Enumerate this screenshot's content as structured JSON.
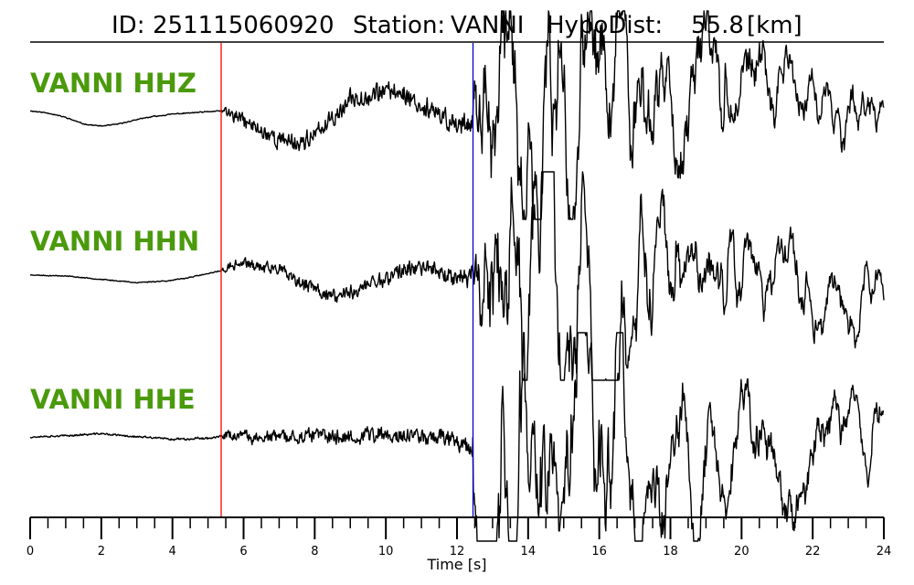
{
  "title": {
    "id_label": "ID:",
    "id_value": "251115060920",
    "station_label": "Station:",
    "station_value": "VANNI",
    "dist_label": "HypoDist:",
    "dist_value": "55.8",
    "dist_unit": "[km]"
  },
  "colors": {
    "label": "#4a9a0c",
    "trace": "#000000",
    "p_pick": "#ff0000",
    "s_pick": "#0000cc"
  },
  "chart_data": {
    "type": "line",
    "xlabel": "Time [s]",
    "xlim": [
      0,
      24
    ],
    "xticks": [
      0,
      2,
      4,
      6,
      8,
      10,
      12,
      14,
      16,
      18,
      20,
      22,
      24
    ],
    "minor_tick_step": 0.5,
    "grid": false,
    "picks": [
      {
        "phase": "P",
        "time": 5.37,
        "color": "#ff0000"
      },
      {
        "phase": "S",
        "time": 12.45,
        "color": "#0000cc"
      }
    ],
    "series": [
      {
        "name": "VANNI HHZ",
        "anchors": [
          [
            0,
            0.04
          ],
          [
            0.5,
            0.02
          ],
          [
            1.0,
            -0.02
          ],
          [
            1.5,
            -0.08
          ],
          [
            2.0,
            -0.1
          ],
          [
            2.5,
            -0.08
          ],
          [
            3.0,
            -0.04
          ],
          [
            3.5,
            -0.01
          ],
          [
            4.0,
            0.01
          ],
          [
            4.5,
            0.02
          ],
          [
            5.0,
            0.03
          ],
          [
            5.37,
            0.04
          ],
          [
            5.5,
            0.02
          ],
          [
            6.0,
            -0.05
          ],
          [
            6.5,
            -0.15
          ],
          [
            7.0,
            -0.22
          ],
          [
            7.5,
            -0.25
          ],
          [
            8.0,
            -0.2
          ],
          [
            8.5,
            -0.02
          ],
          [
            9.0,
            0.14
          ],
          [
            9.5,
            0.18
          ],
          [
            10.0,
            0.22
          ],
          [
            10.5,
            0.2
          ],
          [
            11.0,
            0.08
          ],
          [
            11.5,
            -0.02
          ],
          [
            12.0,
            -0.08
          ],
          [
            12.45,
            -0.04
          ],
          [
            13.0,
            0.0
          ],
          [
            14.0,
            0.0
          ],
          [
            16.0,
            0.02
          ],
          [
            18.0,
            0.04
          ],
          [
            20.0,
            0.1
          ],
          [
            21.0,
            0.06
          ],
          [
            22.0,
            -0.06
          ],
          [
            23.0,
            -0.08
          ],
          [
            24.0,
            0.0
          ]
        ],
        "env": [
          [
            0,
            0.005
          ],
          [
            5.37,
            0.006
          ],
          [
            5.5,
            0.07
          ],
          [
            7.0,
            0.1
          ],
          [
            9.0,
            0.1
          ],
          [
            10.5,
            0.12
          ],
          [
            12.4,
            0.13
          ],
          [
            12.6,
            0.45
          ],
          [
            13.5,
            0.75
          ],
          [
            14.3,
            0.9
          ],
          [
            15.0,
            0.75
          ],
          [
            16.0,
            0.55
          ],
          [
            18.0,
            0.4
          ],
          [
            20.0,
            0.3
          ],
          [
            22.0,
            0.2
          ],
          [
            24.0,
            0.16
          ]
        ],
        "seed": 11
      },
      {
        "name": "VANNI HHN",
        "anchors": [
          [
            0,
            0.01
          ],
          [
            1.0,
            0.0
          ],
          [
            2.0,
            -0.03
          ],
          [
            3.0,
            -0.06
          ],
          [
            4.0,
            -0.04
          ],
          [
            5.0,
            0.02
          ],
          [
            5.37,
            0.05
          ],
          [
            6.0,
            0.12
          ],
          [
            7.0,
            0.06
          ],
          [
            7.5,
            -0.06
          ],
          [
            8.0,
            -0.12
          ],
          [
            8.5,
            -0.18
          ],
          [
            9.0,
            -0.16
          ],
          [
            9.5,
            -0.08
          ],
          [
            10.0,
            -0.02
          ],
          [
            10.5,
            0.06
          ],
          [
            11.0,
            0.08
          ],
          [
            11.5,
            0.05
          ],
          [
            12.0,
            0.0
          ],
          [
            12.45,
            0.0
          ],
          [
            14.0,
            0.0
          ],
          [
            16.0,
            0.0
          ],
          [
            18.0,
            0.02
          ],
          [
            20.0,
            0.0
          ],
          [
            22.0,
            0.02
          ],
          [
            24.0,
            -0.06
          ]
        ],
        "env": [
          [
            0,
            0.005
          ],
          [
            5.37,
            0.006
          ],
          [
            5.5,
            0.05
          ],
          [
            7.5,
            0.07
          ],
          [
            9.0,
            0.09
          ],
          [
            11.0,
            0.09
          ],
          [
            12.4,
            0.1
          ],
          [
            12.6,
            0.55
          ],
          [
            13.5,
            0.8
          ],
          [
            14.5,
            0.9
          ],
          [
            15.5,
            0.7
          ],
          [
            16.5,
            0.5
          ],
          [
            18.0,
            0.35
          ],
          [
            20.0,
            0.28
          ],
          [
            22.0,
            0.25
          ],
          [
            24.0,
            0.18
          ]
        ],
        "seed": 23
      },
      {
        "name": "VANNI HHE",
        "anchors": [
          [
            0,
            0.0
          ],
          [
            1.0,
            0.01
          ],
          [
            2.0,
            0.03
          ],
          [
            3.0,
            0.0
          ],
          [
            4.0,
            -0.02
          ],
          [
            5.0,
            -0.01
          ],
          [
            5.37,
            0.0
          ],
          [
            6.0,
            0.0
          ],
          [
            8.0,
            0.0
          ],
          [
            10.0,
            0.02
          ],
          [
            12.0,
            0.0
          ],
          [
            12.45,
            -0.1
          ],
          [
            14.0,
            0.0
          ],
          [
            16.0,
            0.02
          ],
          [
            18.0,
            0.05
          ],
          [
            20.0,
            0.02
          ],
          [
            22.0,
            -0.04
          ],
          [
            23.0,
            0.0
          ],
          [
            24.0,
            0.04
          ]
        ],
        "env": [
          [
            0,
            0.01
          ],
          [
            5.37,
            0.012
          ],
          [
            5.5,
            0.06
          ],
          [
            8.0,
            0.08
          ],
          [
            10.0,
            0.09
          ],
          [
            12.4,
            0.1
          ],
          [
            12.6,
            0.8
          ],
          [
            13.5,
            0.85
          ],
          [
            14.5,
            0.7
          ],
          [
            16.0,
            0.65
          ],
          [
            18.0,
            0.45
          ],
          [
            20.0,
            0.3
          ],
          [
            22.0,
            0.25
          ],
          [
            24.0,
            0.2
          ]
        ],
        "seed": 37
      }
    ]
  }
}
